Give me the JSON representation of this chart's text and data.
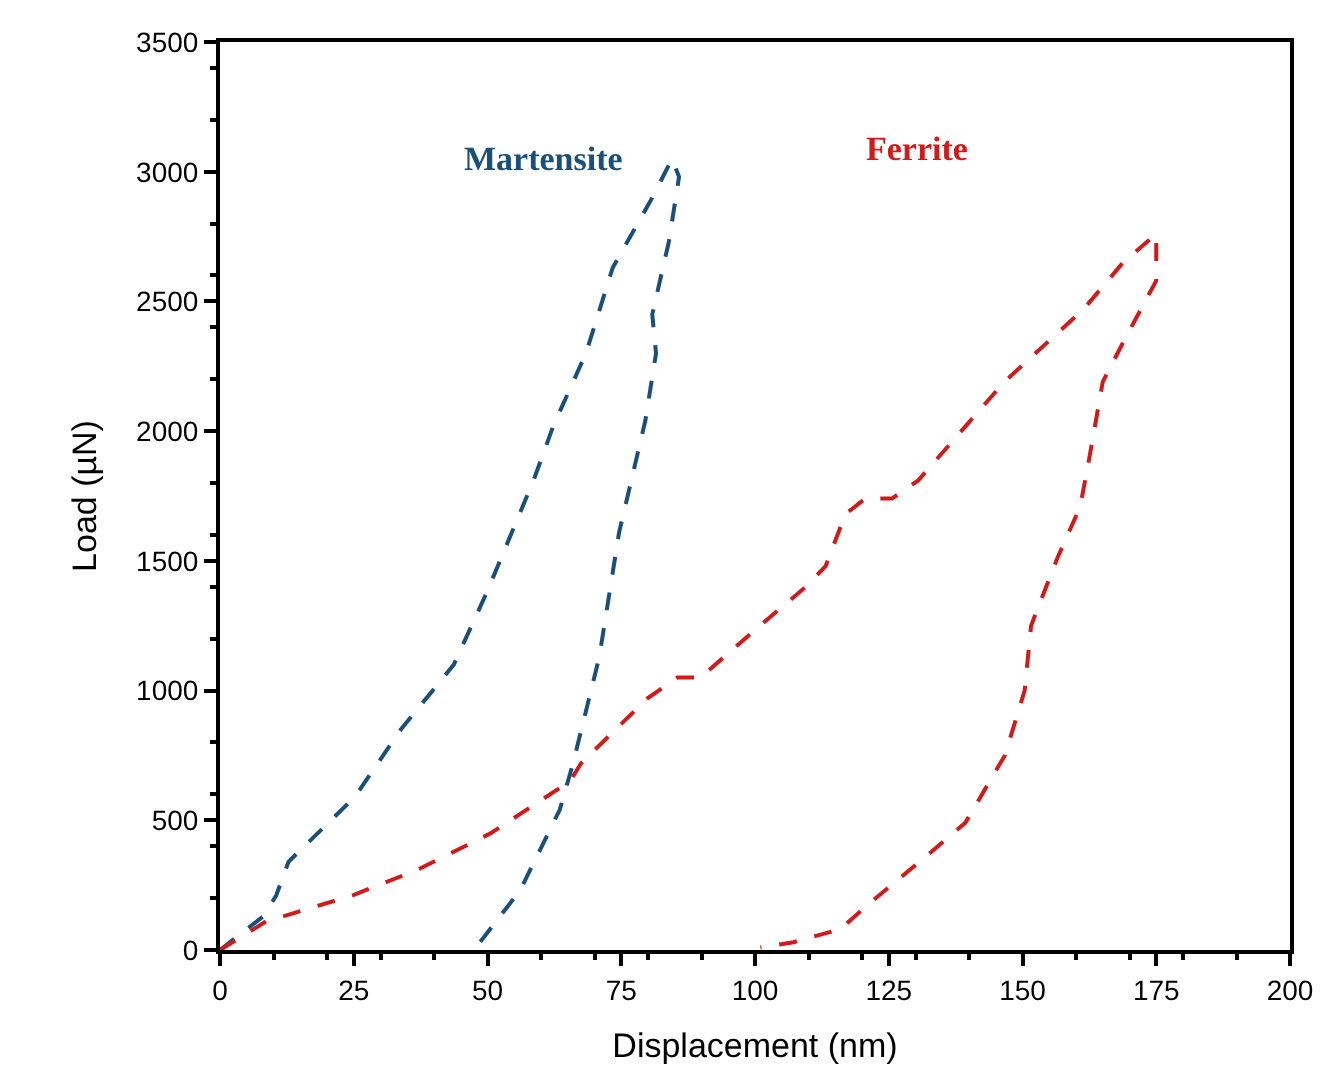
{
  "chart_data": {
    "type": "line",
    "xlabel": "Displacement (nm)",
    "ylabel": "Load (µN)",
    "xlim": [
      0,
      200
    ],
    "xticks": [
      0,
      25,
      50,
      75,
      100,
      125,
      150,
      175,
      200
    ],
    "ylim": [
      0,
      3500
    ],
    "yticks": [
      0,
      500,
      1000,
      1500,
      2000,
      2500,
      3000,
      3500
    ],
    "legend": false,
    "marker": "none",
    "line_style": "dashed",
    "series": [
      {
        "name": "Martensite",
        "color": "#1a4f7a",
        "x": [
          0,
          8.1,
          10.5,
          12.8,
          25.2,
          33.8,
          43.7,
          49.9,
          58.6,
          62.3,
          68.4,
          73.4,
          80.8,
          84.5,
          85.8,
          83.9,
          80.8,
          81.5,
          79.5,
          74.6,
          70.9,
          66,
          63.5,
          56.1,
          48.6
        ],
        "values": [
          0,
          130,
          210,
          340,
          590,
          850,
          1100,
          1380,
          1810,
          2020,
          2300,
          2630,
          2900,
          3050,
          2980,
          2730,
          2450,
          2300,
          2040,
          1610,
          1130,
          720,
          540,
          230,
          30
        ]
      },
      {
        "name": "Ferrite",
        "color": "#d11a1a",
        "x": [
          0,
          8.6,
          24.7,
          37,
          50.6,
          65.4,
          67.5,
          79.9,
          85.5,
          89.8,
          100.9,
          109.5,
          113.2,
          116.9,
          120.6,
          125.6,
          130.5,
          146.6,
          161.4,
          168.8,
          175,
          175,
          169,
          165,
          162.6,
          160.8,
          156.5,
          151.6,
          150.4,
          146.7,
          139.3,
          131.9,
          122,
          115.9,
          107.2,
          101
        ],
        "values": [
          0,
          110,
          210,
          310,
          450,
          650,
          720,
          970,
          1050,
          1050,
          1250,
          1400,
          1480,
          1680,
          1740,
          1740,
          1810,
          2190,
          2470,
          2650,
          2760,
          2580,
          2350,
          2190,
          1910,
          1710,
          1510,
          1250,
          1000,
          750,
          490,
          360,
          190,
          80,
          30,
          10
        ]
      }
    ]
  }
}
